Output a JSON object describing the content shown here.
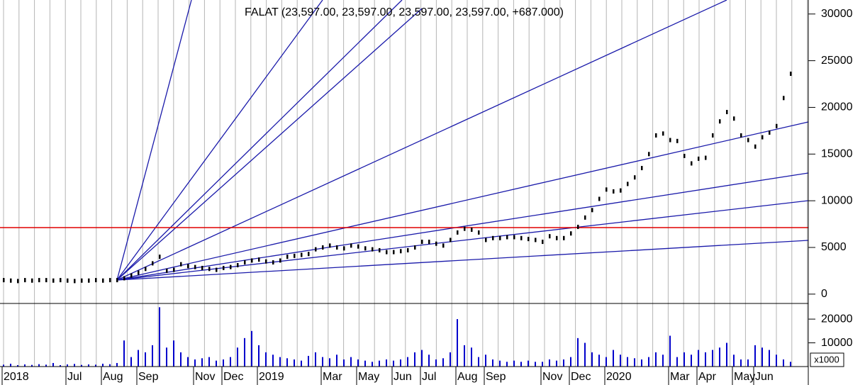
{
  "chart_data": [
    {
      "type": "ohlc",
      "title": "FALAT (23,597.00, 23,597.00, 23,597.00, 23,597.00, +687.000)",
      "color": "#000000",
      "categories": [
        "2018",
        null,
        null,
        null,
        null,
        null,
        null,
        null,
        null,
        "Jul",
        null,
        null,
        null,
        null,
        "Aug",
        null,
        null,
        null,
        null,
        "Sep",
        null,
        null,
        null,
        null,
        null,
        null,
        null,
        "Nov",
        null,
        null,
        null,
        "Dec",
        null,
        null,
        null,
        null,
        "2019",
        null,
        null,
        null,
        null,
        null,
        null,
        null,
        null,
        "Mar",
        null,
        null,
        null,
        null,
        "May",
        null,
        null,
        null,
        null,
        "Jun",
        null,
        null,
        null,
        "Jul",
        null,
        null,
        null,
        null,
        "Aug",
        null,
        null,
        null,
        "Sep",
        null,
        null,
        null,
        null,
        null,
        null,
        null,
        "Nov",
        null,
        null,
        null,
        "Dec",
        null,
        null,
        null,
        null,
        "2020",
        null,
        null,
        null,
        null,
        null,
        null,
        null,
        null,
        "Mar",
        null,
        null,
        null,
        "Apr",
        null,
        null,
        null,
        null,
        "May",
        null,
        null,
        "Jun",
        null,
        null,
        null,
        null,
        null,
        null,
        null
      ],
      "values": [
        1500,
        1450,
        1400,
        1500,
        1450,
        1500,
        1500,
        1450,
        1500,
        1450,
        1400,
        1450,
        1450,
        1500,
        1450,
        1500,
        1500,
        1700,
        2000,
        2300,
        2700,
        3300,
        4000,
        2500,
        2600,
        3200,
        3000,
        2900,
        2800,
        2700,
        2600,
        2800,
        2900,
        3100,
        3400,
        3600,
        3700,
        3500,
        3400,
        3600,
        4000,
        4100,
        4200,
        4300,
        4800,
        5000,
        5200,
        5000,
        4900,
        5200,
        5100,
        4900,
        4800,
        4700,
        4500,
        4500,
        4600,
        4700,
        5000,
        5600,
        5600,
        5400,
        5200,
        5800,
        6600,
        7000,
        6900,
        6600,
        5800,
        6000,
        6000,
        6100,
        6100,
        6000,
        5900,
        5800,
        5600,
        6200,
        6000,
        6000,
        6500,
        7200,
        8200,
        9000,
        10200,
        11200,
        11000,
        11100,
        11800,
        12500,
        13500,
        15000,
        17000,
        17200,
        16500,
        16400,
        14800,
        14000,
        14500,
        14600,
        17000,
        18500,
        19500,
        18800,
        17000,
        16500,
        15800,
        16800,
        17300,
        18000,
        21000,
        23600,
        null,
        null
      ],
      "ylim": [
        -1000,
        31500
      ],
      "yticks": [
        0,
        5000,
        10000,
        15000,
        20000,
        25000,
        30000
      ],
      "grid": true
    },
    {
      "type": "bar",
      "color": "#0000cc",
      "unit_label": "x1000",
      "values": [
        800,
        1200,
        600,
        900,
        700,
        1000,
        800,
        1500,
        600,
        900,
        1100,
        700,
        900,
        800,
        1200,
        1000,
        1500,
        11000,
        4000,
        7000,
        6000,
        9000,
        25000,
        8000,
        11000,
        6000,
        4000,
        3000,
        3500,
        4000,
        2500,
        3000,
        4000,
        8000,
        12000,
        15000,
        9000,
        6000,
        5000,
        4000,
        3500,
        3000,
        2500,
        4500,
        6000,
        4000,
        3500,
        5000,
        3000,
        4000,
        3000,
        2500,
        2000,
        2500,
        3000,
        2500,
        3000,
        4000,
        6000,
        7000,
        5000,
        3000,
        3500,
        6000,
        20000,
        9000,
        8000,
        4000,
        5000,
        3000,
        2500,
        2000,
        2500,
        2000,
        2500,
        2000,
        2000,
        3000,
        2500,
        3000,
        4000,
        12000,
        10000,
        6000,
        5000,
        4000,
        7000,
        5000,
        4000,
        3500,
        3000,
        4000,
        6000,
        5000,
        13000,
        4000,
        6000,
        5000,
        7000,
        6000,
        7000,
        8000,
        10000,
        5000,
        3000,
        3000,
        9000,
        8000,
        7000,
        5000,
        3000,
        2000,
        null,
        null
      ],
      "ylim": [
        0,
        26000
      ],
      "yticks": [
        10000,
        20000
      ]
    }
  ]
}
